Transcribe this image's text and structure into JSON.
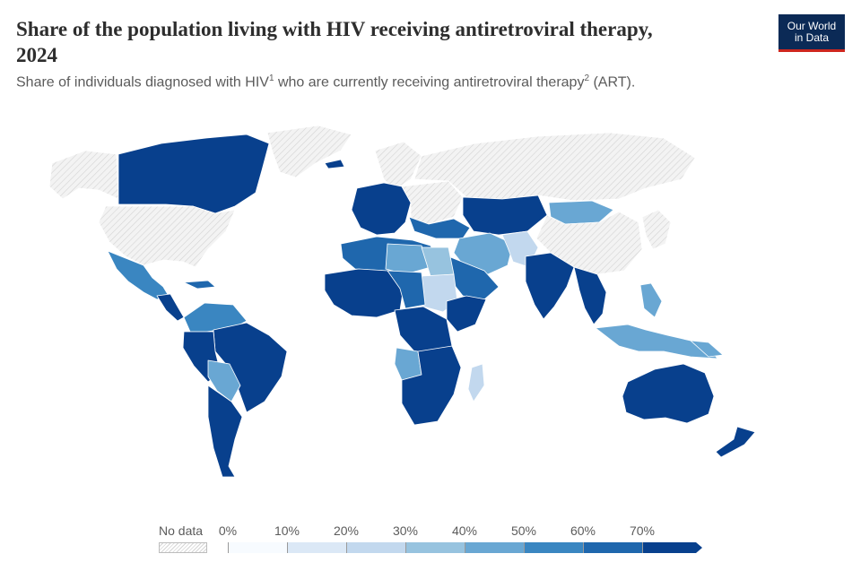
{
  "header": {
    "title": "Share of the population living with HIV receiving antiretroviral therapy, 2024",
    "subtitle_pre": "Share of individuals diagnosed with HIV",
    "subtitle_sup1": "1",
    "subtitle_mid": " who are currently receiving antiretroviral therapy",
    "subtitle_sup2": "2",
    "subtitle_post": " (ART)."
  },
  "logo": {
    "line1": "Our World",
    "line2": "in Data"
  },
  "legend": {
    "no_data_label": "No data",
    "ticks": [
      "0%",
      "10%",
      "20%",
      "30%",
      "40%",
      "50%",
      "60%",
      "70%"
    ],
    "colors": [
      "#f7fbff",
      "#dbe8f6",
      "#c2d8ee",
      "#97c3df",
      "#69a7d3",
      "#3a86c1",
      "#1f67ad",
      "#08408d"
    ]
  },
  "map_colors": {
    "land_nodata": "#ececec",
    "border": "#ffffff",
    "hatch": "#d0d0d0"
  }
}
